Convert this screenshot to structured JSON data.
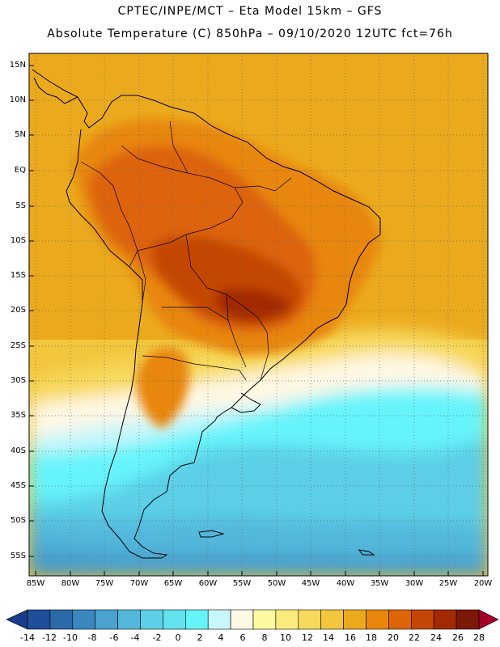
{
  "header": {
    "line1": "CPTEC/INPE/MCT –  Eta Model 15km – GFS",
    "line2": "Absolute Temperature (C) 850hPa – 09/10/2020 12UTC fct=76h"
  },
  "map": {
    "lat_labels": [
      "15N",
      "10N",
      "5N",
      "EQ",
      "5S",
      "10S",
      "15S",
      "20S",
      "25S",
      "30S",
      "35S",
      "40S",
      "45S",
      "50S",
      "55S"
    ],
    "lon_labels": [
      "85W",
      "80W",
      "75W",
      "70W",
      "65W",
      "60W",
      "55W",
      "50W",
      "45W",
      "40W",
      "35W",
      "30W",
      "25W",
      "20W"
    ],
    "grid": "dotted"
  },
  "colorbar": {
    "labels": [
      "-14",
      "-12",
      "-10",
      "-8",
      "-6",
      "-4",
      "-2",
      "0",
      "2",
      "4",
      "6",
      "8",
      "10",
      "12",
      "14",
      "16",
      "18",
      "20",
      "22",
      "24",
      "26",
      "28"
    ],
    "colors": [
      "#1a3a8a",
      "#1f4e9a",
      "#2a6aa8",
      "#3a88bf",
      "#4aa2cf",
      "#52b8db",
      "#5ccfe6",
      "#62e2ef",
      "#66f4fb",
      "#c8f6fb",
      "#fff8e4",
      "#fefaa2",
      "#fbeb7d",
      "#f7d95b",
      "#f2c63d",
      "#ebaa1e",
      "#e8860c",
      "#dd6408",
      "#c44605",
      "#a32a03",
      "#7c1806",
      "#a3002a"
    ]
  }
}
